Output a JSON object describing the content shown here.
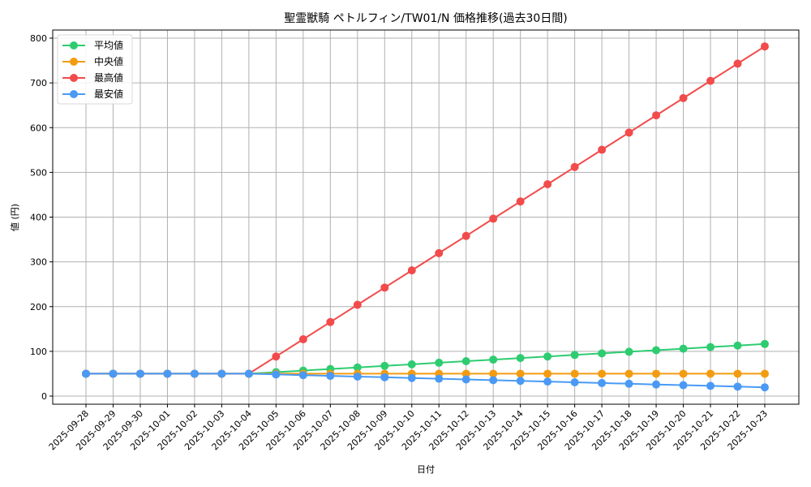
{
  "chart_data": {
    "type": "line",
    "title": "聖霊獣騎 ペトルフィン/TW01/N 価格推移(過去30日間)",
    "xlabel": "日付",
    "ylabel": "値 (円)",
    "ylim": [
      -20,
      820
    ],
    "yticks": [
      0,
      100,
      200,
      300,
      400,
      500,
      600,
      700,
      800
    ],
    "grid": true,
    "legend_position": "upper left",
    "categories": [
      "2025-09-28",
      "2025-09-29",
      "2025-09-30",
      "2025-10-01",
      "2025-10-02",
      "2025-10-03",
      "2025-10-04",
      "2025-10-05",
      "2025-10-06",
      "2025-10-07",
      "2025-10-08",
      "2025-10-09",
      "2025-10-10",
      "2025-10-11",
      "2025-10-12",
      "2025-10-13",
      "2025-10-14",
      "2025-10-15",
      "2025-10-16",
      "2025-10-17",
      "2025-10-18",
      "2025-10-19",
      "2025-10-20",
      "2025-10-21",
      "2025-10-22",
      "2025-10-23"
    ],
    "series": [
      {
        "name": "平均値",
        "color": "#2ecc71",
        "values": [
          50,
          50,
          50,
          50,
          50,
          50,
          50,
          53.5,
          57,
          60.5,
          64,
          67.5,
          71,
          74.5,
          78,
          81.5,
          85,
          88.5,
          92,
          95.5,
          99,
          102.5,
          106,
          109.5,
          113,
          116.5
        ]
      },
      {
        "name": "中央値",
        "color": "#f39c12",
        "values": [
          50,
          50,
          50,
          50,
          50,
          50,
          50,
          50,
          50,
          50,
          50,
          50,
          50,
          50,
          50,
          50,
          50,
          50,
          50,
          50,
          50,
          50,
          50,
          50,
          50,
          50
        ]
      },
      {
        "name": "最高値",
        "color": "#f24b4b",
        "values": [
          50,
          50,
          50,
          50,
          50,
          50,
          50,
          88.5,
          127,
          165.5,
          204,
          242.5,
          281,
          319.5,
          358,
          396.5,
          435,
          473.5,
          512,
          550.5,
          589,
          627.5,
          666,
          704.5,
          743,
          781.5
        ]
      },
      {
        "name": "最安値",
        "color": "#4a9af5",
        "values": [
          50,
          50,
          50,
          50,
          50,
          50,
          50,
          48.4,
          46.8,
          45.2,
          43.6,
          42,
          40.4,
          38.8,
          37.2,
          35.6,
          34,
          32.4,
          30.8,
          29.2,
          27.6,
          26,
          24.4,
          22.8,
          21.2,
          19.6
        ]
      }
    ]
  }
}
